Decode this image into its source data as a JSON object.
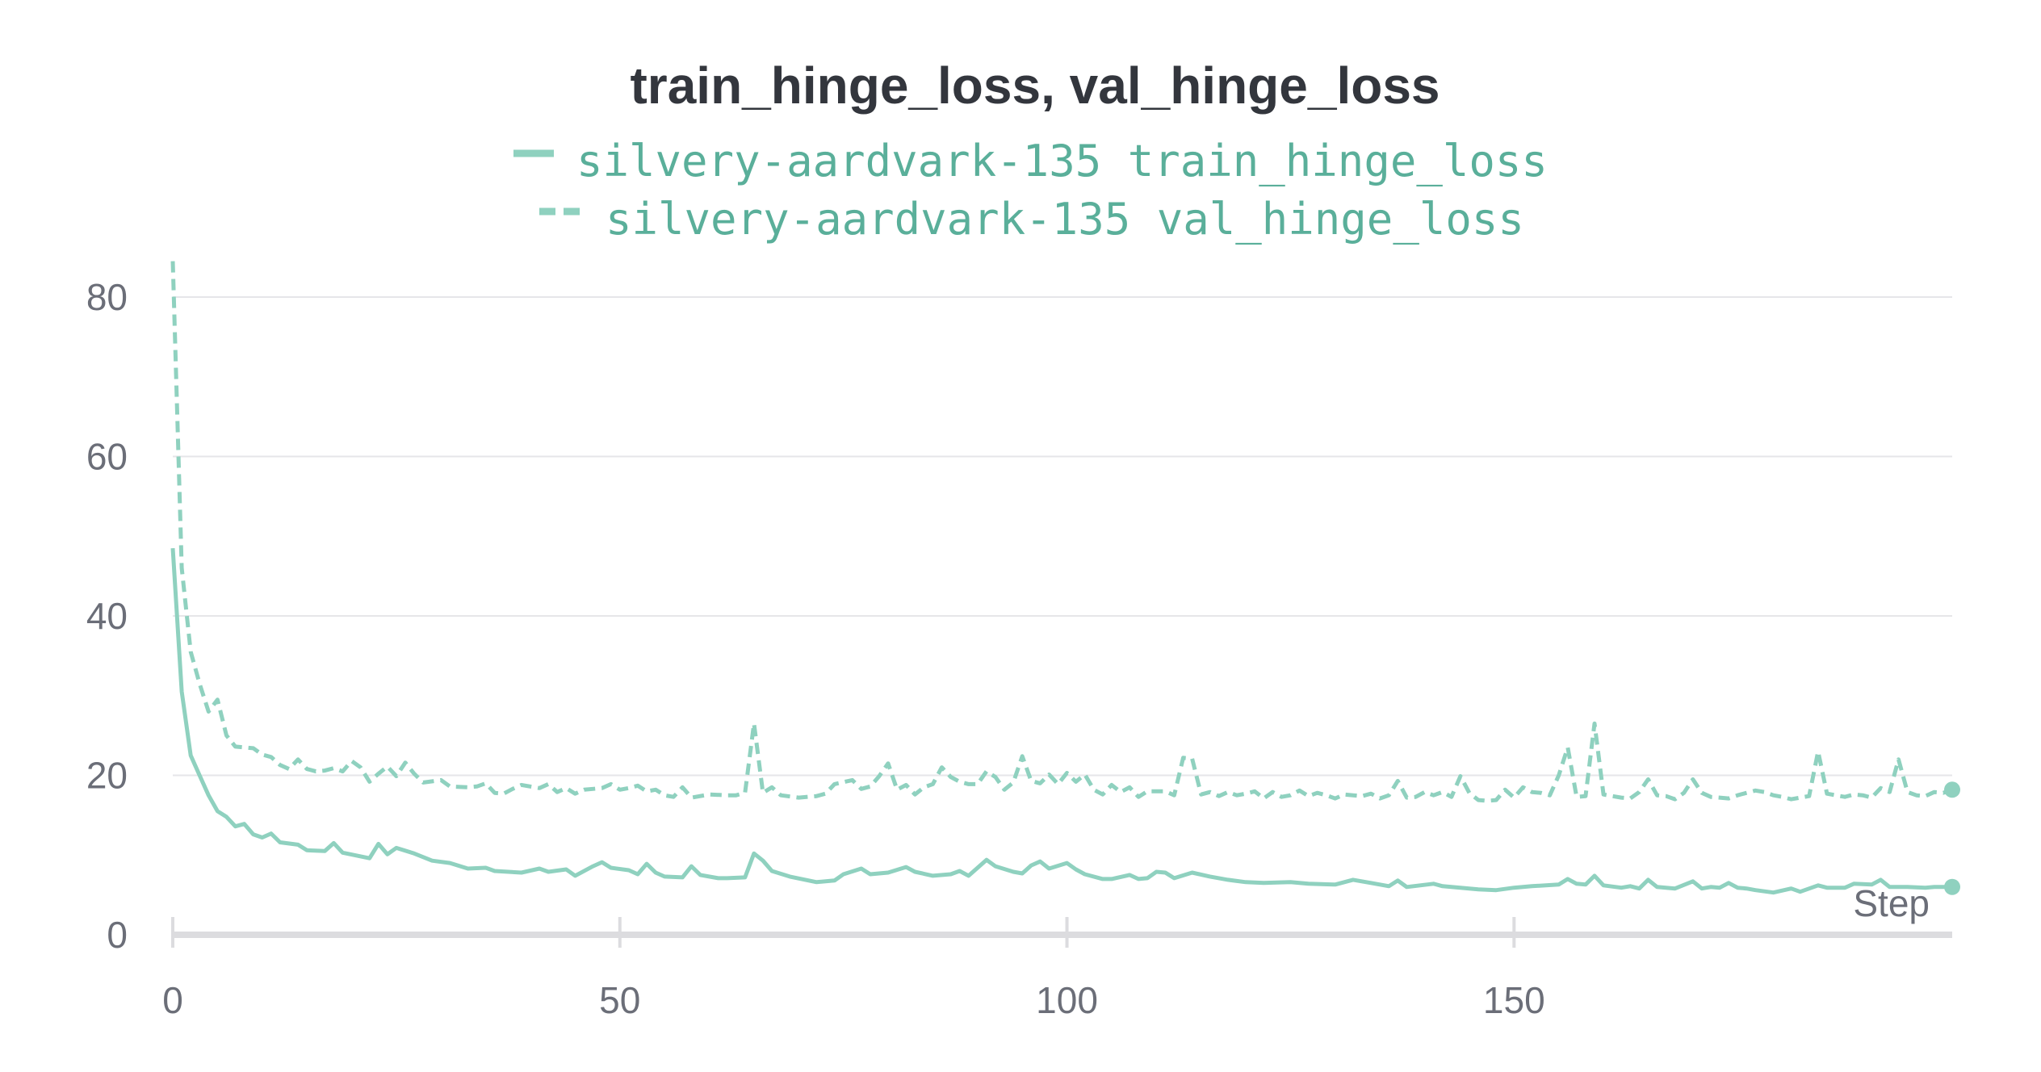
{
  "chart_data": {
    "type": "line",
    "title": "train_hinge_loss, val_hinge_loss",
    "xlabel": "Step",
    "ylabel": "",
    "xlim": [
      0,
      199
    ],
    "ylim": [
      0,
      80
    ],
    "xticks": [
      0,
      50,
      100,
      150
    ],
    "yticks": [
      0,
      20,
      40,
      60,
      80
    ],
    "grid": true,
    "legend_position": "top-center",
    "color": "#8fd1bf",
    "series": [
      {
        "name": "silvery-aardvark-135 train_hinge_loss",
        "style": "solid",
        "keypoints": [
          [
            0,
            48.5
          ],
          [
            1,
            30.5
          ],
          [
            2,
            22.5
          ],
          [
            3,
            20
          ],
          [
            4,
            17.5
          ],
          [
            5,
            15.5
          ],
          [
            6,
            14.8
          ],
          [
            7,
            13.6
          ],
          [
            8,
            13.9
          ],
          [
            9,
            12.6
          ],
          [
            10,
            12.2
          ],
          [
            11,
            12.7
          ],
          [
            12,
            11.6
          ],
          [
            14,
            11.3
          ],
          [
            15,
            10.6
          ],
          [
            17,
            10.5
          ],
          [
            18,
            11.5
          ],
          [
            19,
            10.3
          ],
          [
            22,
            9.6
          ],
          [
            23,
            11.4
          ],
          [
            24,
            10.1
          ],
          [
            25,
            10.9
          ],
          [
            27,
            10.2
          ],
          [
            29,
            9.3
          ],
          [
            31,
            9.0
          ],
          [
            33,
            8.3
          ],
          [
            35,
            8.4
          ],
          [
            36,
            8.0
          ],
          [
            39,
            7.8
          ],
          [
            41,
            8.3
          ],
          [
            42,
            7.9
          ],
          [
            44,
            8.2
          ],
          [
            45,
            7.4
          ],
          [
            47,
            8.6
          ],
          [
            48,
            9.1
          ],
          [
            49,
            8.4
          ],
          [
            51,
            8.1
          ],
          [
            52,
            7.6
          ],
          [
            53,
            8.9
          ],
          [
            54,
            7.8
          ],
          [
            55,
            7.3
          ],
          [
            57,
            7.2
          ],
          [
            58,
            8.6
          ],
          [
            59,
            7.5
          ],
          [
            61,
            7.1
          ],
          [
            62,
            7.1
          ],
          [
            64,
            7.2
          ],
          [
            65,
            10.2
          ],
          [
            66,
            9.3
          ],
          [
            67,
            8.0
          ],
          [
            69,
            7.3
          ],
          [
            72,
            6.6
          ],
          [
            74,
            6.8
          ],
          [
            75,
            7.6
          ],
          [
            77,
            8.3
          ],
          [
            78,
            7.6
          ],
          [
            80,
            7.8
          ],
          [
            82,
            8.5
          ],
          [
            83,
            7.9
          ],
          [
            85,
            7.4
          ],
          [
            87,
            7.6
          ],
          [
            88,
            8.0
          ],
          [
            89,
            7.4
          ],
          [
            91,
            9.4
          ],
          [
            92,
            8.6
          ],
          [
            94,
            7.9
          ],
          [
            95,
            7.7
          ],
          [
            96,
            8.7
          ],
          [
            97,
            9.2
          ],
          [
            98,
            8.3
          ],
          [
            100,
            9.0
          ],
          [
            101,
            8.2
          ],
          [
            102,
            7.6
          ],
          [
            104,
            7.0
          ],
          [
            105,
            7.0
          ],
          [
            107,
            7.5
          ],
          [
            108,
            7.0
          ],
          [
            109,
            7.1
          ],
          [
            110,
            7.9
          ],
          [
            111,
            7.8
          ],
          [
            112,
            7.1
          ],
          [
            114,
            7.8
          ],
          [
            116,
            7.3
          ],
          [
            118,
            6.9
          ],
          [
            120,
            6.6
          ],
          [
            122,
            6.5
          ],
          [
            125,
            6.6
          ],
          [
            127,
            6.4
          ],
          [
            130,
            6.3
          ],
          [
            132,
            6.9
          ],
          [
            134,
            6.5
          ],
          [
            136,
            6.1
          ],
          [
            137,
            6.8
          ],
          [
            138,
            6.0
          ],
          [
            141,
            6.4
          ],
          [
            142,
            6.1
          ],
          [
            144,
            5.9
          ],
          [
            146,
            5.7
          ],
          [
            148,
            5.6
          ],
          [
            150,
            5.9
          ],
          [
            152,
            6.1
          ],
          [
            155,
            6.3
          ],
          [
            156,
            7.0
          ],
          [
            157,
            6.4
          ],
          [
            158,
            6.3
          ],
          [
            159,
            7.4
          ],
          [
            160,
            6.2
          ],
          [
            162,
            5.9
          ],
          [
            163,
            6.1
          ],
          [
            164,
            5.8
          ],
          [
            165,
            6.9
          ],
          [
            166,
            6.0
          ],
          [
            168,
            5.8
          ],
          [
            170,
            6.7
          ],
          [
            171,
            5.8
          ],
          [
            172,
            6.0
          ],
          [
            173,
            5.9
          ],
          [
            174,
            6.5
          ],
          [
            175,
            5.9
          ],
          [
            176,
            5.8
          ],
          [
            177,
            5.6
          ],
          [
            179,
            5.3
          ],
          [
            181,
            5.8
          ],
          [
            182,
            5.4
          ],
          [
            184,
            6.2
          ],
          [
            185,
            5.9
          ],
          [
            187,
            5.9
          ],
          [
            188,
            6.4
          ],
          [
            190,
            6.3
          ],
          [
            191,
            6.9
          ],
          [
            192,
            6.0
          ],
          [
            194,
            6.0
          ],
          [
            196,
            5.9
          ],
          [
            197,
            6.0
          ],
          [
            199,
            6.0
          ]
        ]
      },
      {
        "name": "silvery-aardvark-135 val_hinge_loss",
        "style": "dashed",
        "keypoints": [
          [
            0,
            84.5
          ],
          [
            1,
            46
          ],
          [
            2,
            35.5
          ],
          [
            3,
            31.5
          ],
          [
            4,
            28
          ],
          [
            5,
            29.5
          ],
          [
            6,
            25
          ],
          [
            7,
            23.6
          ],
          [
            8,
            23.5
          ],
          [
            9,
            23.4
          ],
          [
            10,
            22.6
          ],
          [
            11,
            22.3
          ],
          [
            12,
            21.3
          ],
          [
            13,
            20.8
          ],
          [
            14,
            22
          ],
          [
            15,
            20.8
          ],
          [
            16,
            20.5
          ],
          [
            17,
            20.6
          ],
          [
            18,
            20.9
          ],
          [
            19,
            20.5
          ],
          [
            20,
            21.8
          ],
          [
            21,
            21.0
          ],
          [
            22,
            19.2
          ],
          [
            23,
            20.2
          ],
          [
            24,
            21.1
          ],
          [
            25,
            19.9
          ],
          [
            26,
            21.6
          ],
          [
            27,
            20.2
          ],
          [
            28,
            19.1
          ],
          [
            30,
            19.4
          ],
          [
            31,
            18.6
          ],
          [
            33,
            18.5
          ],
          [
            34,
            18.6
          ],
          [
            35,
            19.0
          ],
          [
            36,
            17.8
          ],
          [
            37,
            17.7
          ],
          [
            38,
            18.3
          ],
          [
            39,
            18.8
          ],
          [
            41,
            18.4
          ],
          [
            42,
            18.9
          ],
          [
            43,
            17.9
          ],
          [
            44,
            18.4
          ],
          [
            45,
            17.7
          ],
          [
            46,
            18.2
          ],
          [
            48,
            18.4
          ],
          [
            49,
            18.9
          ],
          [
            50,
            18.2
          ],
          [
            51,
            18.4
          ],
          [
            52,
            18.7
          ],
          [
            53,
            18.0
          ],
          [
            54,
            18.2
          ],
          [
            55,
            17.5
          ],
          [
            56,
            17.3
          ],
          [
            57,
            18.5
          ],
          [
            58,
            17.2
          ],
          [
            60,
            17.6
          ],
          [
            62,
            17.5
          ],
          [
            63,
            17.5
          ],
          [
            64,
            17.8
          ],
          [
            65,
            26.5
          ],
          [
            66,
            17.8
          ],
          [
            67,
            18.5
          ],
          [
            68,
            17.5
          ],
          [
            70,
            17.2
          ],
          [
            72,
            17.4
          ],
          [
            73,
            17.7
          ],
          [
            74,
            18.9
          ],
          [
            76,
            19.4
          ],
          [
            77,
            18.3
          ],
          [
            78,
            18.6
          ],
          [
            79,
            19.9
          ],
          [
            80,
            21.5
          ],
          [
            81,
            18.2
          ],
          [
            82,
            18.8
          ],
          [
            83,
            17.6
          ],
          [
            84,
            18.5
          ],
          [
            85,
            18.9
          ],
          [
            86,
            21.0
          ],
          [
            87,
            19.8
          ],
          [
            88,
            19.2
          ],
          [
            89,
            18.9
          ],
          [
            90,
            18.9
          ],
          [
            91,
            20.5
          ],
          [
            92,
            19.8
          ],
          [
            93,
            18.2
          ],
          [
            94,
            19.1
          ],
          [
            95,
            22.4
          ],
          [
            96,
            19.3
          ],
          [
            97,
            19.0
          ],
          [
            98,
            20.1
          ],
          [
            99,
            18.9
          ],
          [
            100,
            20.3
          ],
          [
            101,
            19.2
          ],
          [
            102,
            20.1
          ],
          [
            103,
            18.2
          ],
          [
            104,
            17.6
          ],
          [
            105,
            18.8
          ],
          [
            106,
            17.9
          ],
          [
            107,
            18.5
          ],
          [
            108,
            17.3
          ],
          [
            109,
            18.0
          ],
          [
            111,
            18.0
          ],
          [
            112,
            17.5
          ],
          [
            113,
            22.2
          ],
          [
            114,
            22.1
          ],
          [
            115,
            17.6
          ],
          [
            116,
            17.9
          ],
          [
            117,
            17.4
          ],
          [
            118,
            17.9
          ],
          [
            119,
            17.5
          ],
          [
            120,
            17.7
          ],
          [
            121,
            18.0
          ],
          [
            122,
            17.1
          ],
          [
            123,
            17.9
          ],
          [
            124,
            17.3
          ],
          [
            125,
            17.5
          ],
          [
            126,
            18.1
          ],
          [
            127,
            17.4
          ],
          [
            128,
            17.8
          ],
          [
            129,
            17.5
          ],
          [
            130,
            17.1
          ],
          [
            131,
            17.6
          ],
          [
            132,
            17.5
          ],
          [
            133,
            17.4
          ],
          [
            134,
            17.7
          ],
          [
            135,
            17.1
          ],
          [
            136,
            17.5
          ],
          [
            137,
            19.3
          ],
          [
            138,
            17.2
          ],
          [
            139,
            17.3
          ],
          [
            140,
            17.9
          ],
          [
            141,
            17.5
          ],
          [
            142,
            17.9
          ],
          [
            143,
            17.3
          ],
          [
            144,
            19.9
          ],
          [
            145,
            17.8
          ],
          [
            146,
            16.9
          ],
          [
            147,
            16.8
          ],
          [
            148,
            16.9
          ],
          [
            149,
            18.2
          ],
          [
            150,
            17.2
          ],
          [
            151,
            18.5
          ],
          [
            152,
            17.9
          ],
          [
            153,
            17.8
          ],
          [
            154,
            17.5
          ],
          [
            155,
            20.0
          ],
          [
            156,
            23.5
          ],
          [
            157,
            17.3
          ],
          [
            158,
            17.4
          ],
          [
            159,
            26.5
          ],
          [
            160,
            17.6
          ],
          [
            161,
            17.4
          ],
          [
            162,
            17.2
          ],
          [
            163,
            17.1
          ],
          [
            164,
            17.9
          ],
          [
            165,
            19.5
          ],
          [
            166,
            17.5
          ],
          [
            167,
            17.4
          ],
          [
            168,
            17.0
          ],
          [
            169,
            17.8
          ],
          [
            170,
            19.5
          ],
          [
            171,
            17.8
          ],
          [
            172,
            17.3
          ],
          [
            173,
            17.2
          ],
          [
            174,
            17.1
          ],
          [
            175,
            17.5
          ],
          [
            176,
            17.8
          ],
          [
            177,
            18.1
          ],
          [
            178,
            17.9
          ],
          [
            179,
            17.5
          ],
          [
            180,
            17.3
          ],
          [
            181,
            17.0
          ],
          [
            182,
            17.2
          ],
          [
            183,
            17.4
          ],
          [
            184,
            23.0
          ],
          [
            185,
            17.7
          ],
          [
            186,
            17.5
          ],
          [
            187,
            17.3
          ],
          [
            188,
            17.6
          ],
          [
            189,
            17.5
          ],
          [
            190,
            17.2
          ],
          [
            191,
            18.4
          ],
          [
            192,
            17.9
          ],
          [
            193,
            22.0
          ],
          [
            194,
            17.9
          ],
          [
            195,
            17.5
          ],
          [
            196,
            17.4
          ],
          [
            197,
            17.9
          ],
          [
            198,
            17.8
          ],
          [
            199,
            18.2
          ]
        ]
      }
    ]
  }
}
